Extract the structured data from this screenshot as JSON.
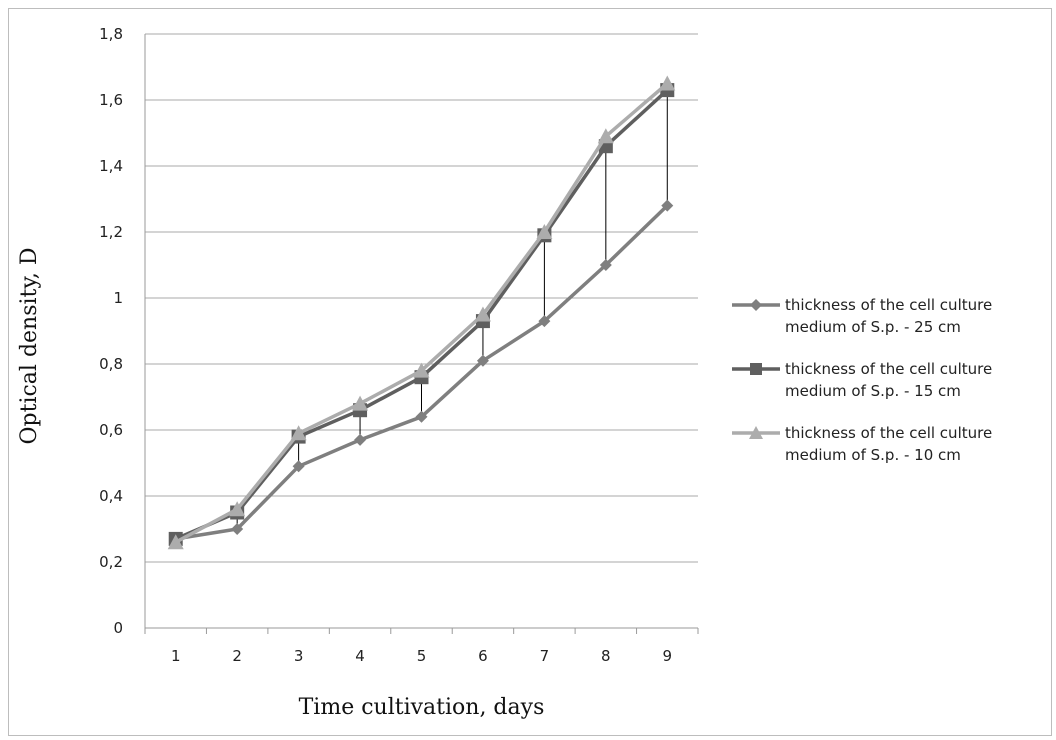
{
  "chart_data": {
    "type": "line",
    "title": "",
    "xlabel": "Time cultivation, days",
    "ylabel": "Optical density, D",
    "x": [
      1,
      2,
      3,
      4,
      5,
      6,
      7,
      8,
      9
    ],
    "ylim": [
      0,
      1.8
    ],
    "yticks": [
      "0",
      "0,2",
      "0,4",
      "0,6",
      "0,8",
      "1",
      "1,2",
      "1,4",
      "1,6",
      "1,8"
    ],
    "grid": true,
    "legend_position": "right",
    "series": [
      {
        "name_lines": [
          "thickness of the cell culture",
          "medium of S.p. - 25 cm"
        ],
        "marker": "diamond",
        "color": "#7f7f7f",
        "values": [
          0.27,
          0.3,
          0.49,
          0.57,
          0.64,
          0.81,
          0.93,
          1.1,
          1.28
        ]
      },
      {
        "name_lines": [
          "thickness of the cell culture",
          "medium of S.p. - 15 cm"
        ],
        "marker": "square",
        "color": "#5f5f5f",
        "values": [
          0.27,
          0.35,
          0.58,
          0.66,
          0.76,
          0.93,
          1.19,
          1.46,
          1.63
        ]
      },
      {
        "name_lines": [
          "thickness of the cell culture",
          "medium of S.p. - 10 cm"
        ],
        "marker": "triangle",
        "color": "#acacac",
        "values": [
          0.26,
          0.36,
          0.59,
          0.68,
          0.78,
          0.95,
          1.2,
          1.49,
          1.65
        ]
      }
    ],
    "drop_lines": true
  }
}
